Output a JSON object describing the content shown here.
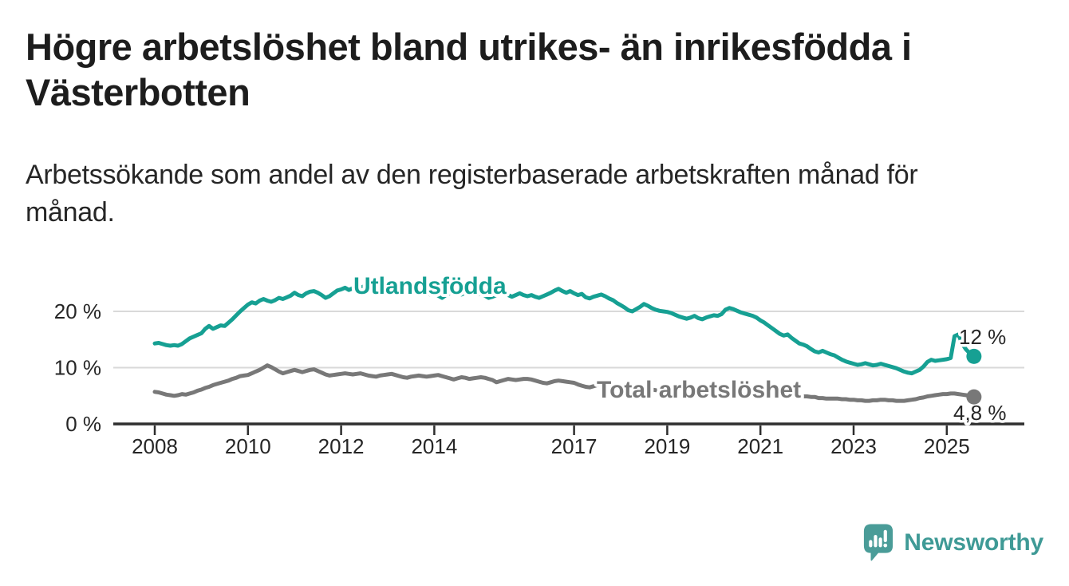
{
  "header": {
    "title": "Högre arbetslöshet bland utrikes- än inrikesfödda i Västerbotten",
    "subtitle": "Arbetssökande som andel av den registerbaserade arbetskraften månad för månad."
  },
  "colors": {
    "background": "#ffffff",
    "text_dark": "#1d1d1d",
    "text_body": "#262626",
    "grid": "#d9d9d9",
    "axis": "#2e2e2e",
    "logo_teal": "#4a9c98",
    "logo_text": "#3f9a96"
  },
  "branding": {
    "name": "Newsworthy"
  },
  "chart_data": {
    "type": "line",
    "unit": "%",
    "start": {
      "year": 2008,
      "month": 1
    },
    "frequency": "monthly",
    "x_ticks": [
      2008,
      2010,
      2012,
      2014,
      2017,
      2019,
      2021,
      2023,
      2025
    ],
    "y_ticks": [
      {
        "value": 0,
        "label": "0 %"
      },
      {
        "value": 10,
        "label": "10 %"
      },
      {
        "value": 20,
        "label": "20 %"
      }
    ],
    "ylim": [
      0,
      27
    ],
    "xlim": [
      2007.1,
      2025.8
    ],
    "grid": true,
    "legend_position": "inline-labels",
    "series": [
      {
        "name": "Utlandsfödda",
        "color": "#16a093",
        "end_label": "12 %",
        "end_value": 12.0,
        "values": [
          14.3,
          14.4,
          14.2,
          14.0,
          13.9,
          14.0,
          13.9,
          14.2,
          14.7,
          15.2,
          15.5,
          15.8,
          16.1,
          16.9,
          17.4,
          16.9,
          17.2,
          17.5,
          17.4,
          18.0,
          18.6,
          19.3,
          20.0,
          20.6,
          21.2,
          21.6,
          21.4,
          21.9,
          22.2,
          21.9,
          21.7,
          22.0,
          22.4,
          22.2,
          22.5,
          22.8,
          23.3,
          22.9,
          22.7,
          23.2,
          23.5,
          23.6,
          23.3,
          22.9,
          22.4,
          22.7,
          23.2,
          23.7,
          23.9,
          24.2,
          23.8,
          24.1,
          24.4,
          24.2,
          24.5,
          24.2,
          24.0,
          24.2,
          23.9,
          24.1,
          23.8,
          24.0,
          23.7,
          23.9,
          23.5,
          23.7,
          23.4,
          23.6,
          23.3,
          23.5,
          23.2,
          23.0,
          23.2,
          22.8,
          22.4,
          22.9,
          23.2,
          23.4,
          23.2,
          23.0,
          23.3,
          23.5,
          23.2,
          23.0,
          23.1,
          22.8,
          22.4,
          22.6,
          22.9,
          23.1,
          23.3,
          22.9,
          22.6,
          22.9,
          23.2,
          22.9,
          22.7,
          22.9,
          22.6,
          22.4,
          22.7,
          23.0,
          23.3,
          23.7,
          24.0,
          23.6,
          23.3,
          23.6,
          23.2,
          22.9,
          23.1,
          22.5,
          22.3,
          22.6,
          22.8,
          23.0,
          22.7,
          22.3,
          22.0,
          21.5,
          21.1,
          20.7,
          20.2,
          20.0,
          20.4,
          20.8,
          21.3,
          21.0,
          20.6,
          20.3,
          20.1,
          20.0,
          19.9,
          19.7,
          19.4,
          19.1,
          18.9,
          18.7,
          18.9,
          19.2,
          18.8,
          18.6,
          18.9,
          19.1,
          19.3,
          19.2,
          19.5,
          20.3,
          20.6,
          20.4,
          20.1,
          19.8,
          19.6,
          19.4,
          19.2,
          18.9,
          18.4,
          18.0,
          17.5,
          17.0,
          16.5,
          16.0,
          15.7,
          15.9,
          15.3,
          14.8,
          14.3,
          14.1,
          13.8,
          13.3,
          12.9,
          12.7,
          13.0,
          12.7,
          12.4,
          12.2,
          11.8,
          11.4,
          11.1,
          10.9,
          10.7,
          10.5,
          10.6,
          10.8,
          10.6,
          10.4,
          10.5,
          10.7,
          10.5,
          10.3,
          10.1,
          9.9,
          9.6,
          9.3,
          9.1,
          9.0,
          9.3,
          9.6,
          10.2,
          11.0,
          11.4,
          11.2,
          11.3,
          11.4,
          11.5,
          11.7,
          15.6,
          15.9,
          14.2,
          13.2,
          12.5,
          12.0
        ]
      },
      {
        "name": "Total arbetslöshet",
        "color": "#787878",
        "end_label": "4,8 %",
        "end_value": 4.8,
        "values": [
          5.7,
          5.6,
          5.4,
          5.2,
          5.1,
          5.0,
          5.1,
          5.3,
          5.2,
          5.4,
          5.6,
          5.9,
          6.1,
          6.4,
          6.6,
          6.9,
          7.1,
          7.3,
          7.5,
          7.7,
          8.0,
          8.2,
          8.5,
          8.6,
          8.7,
          9.0,
          9.3,
          9.6,
          10.0,
          10.4,
          10.1,
          9.7,
          9.3,
          9.0,
          9.2,
          9.4,
          9.6,
          9.4,
          9.2,
          9.4,
          9.6,
          9.7,
          9.4,
          9.1,
          8.8,
          8.6,
          8.7,
          8.8,
          8.9,
          9.0,
          8.9,
          8.8,
          8.9,
          9.0,
          8.8,
          8.6,
          8.5,
          8.4,
          8.6,
          8.7,
          8.8,
          8.9,
          8.7,
          8.5,
          8.3,
          8.2,
          8.4,
          8.5,
          8.6,
          8.5,
          8.4,
          8.5,
          8.6,
          8.7,
          8.5,
          8.3,
          8.1,
          7.9,
          8.1,
          8.3,
          8.2,
          8.0,
          8.1,
          8.2,
          8.3,
          8.2,
          8.0,
          7.8,
          7.4,
          7.6,
          7.8,
          8.0,
          7.9,
          7.8,
          7.9,
          8.0,
          8.0,
          7.9,
          7.7,
          7.5,
          7.3,
          7.2,
          7.4,
          7.6,
          7.7,
          7.6,
          7.5,
          7.4,
          7.3,
          7.0,
          6.8,
          6.6,
          6.5,
          6.7,
          6.9,
          7.0,
          6.9,
          6.8,
          6.7,
          6.6,
          6.5,
          6.4,
          6.2,
          6.1,
          6.2,
          6.3,
          6.4,
          6.3,
          6.1,
          6.0,
          5.9,
          5.9,
          5.9,
          5.8,
          5.7,
          5.6,
          5.6,
          5.5,
          5.6,
          5.7,
          5.6,
          5.5,
          5.5,
          5.6,
          5.6,
          5.7,
          5.9,
          6.3,
          6.6,
          6.5,
          6.4,
          6.3,
          6.2,
          6.1,
          6.0,
          6.0,
          6.0,
          5.9,
          5.7,
          5.6,
          5.4,
          5.3,
          5.2,
          5.1,
          5.1,
          5.0,
          5.0,
          4.9,
          4.9,
          4.8,
          4.8,
          4.6,
          4.6,
          4.5,
          4.5,
          4.5,
          4.5,
          4.4,
          4.4,
          4.3,
          4.3,
          4.2,
          4.2,
          4.1,
          4.1,
          4.2,
          4.2,
          4.3,
          4.3,
          4.2,
          4.2,
          4.1,
          4.1,
          4.1,
          4.2,
          4.3,
          4.4,
          4.6,
          4.7,
          4.9,
          5.0,
          5.1,
          5.2,
          5.3,
          5.3,
          5.4,
          5.4,
          5.3,
          5.2,
          5.1,
          5.0,
          4.8
        ]
      }
    ]
  }
}
